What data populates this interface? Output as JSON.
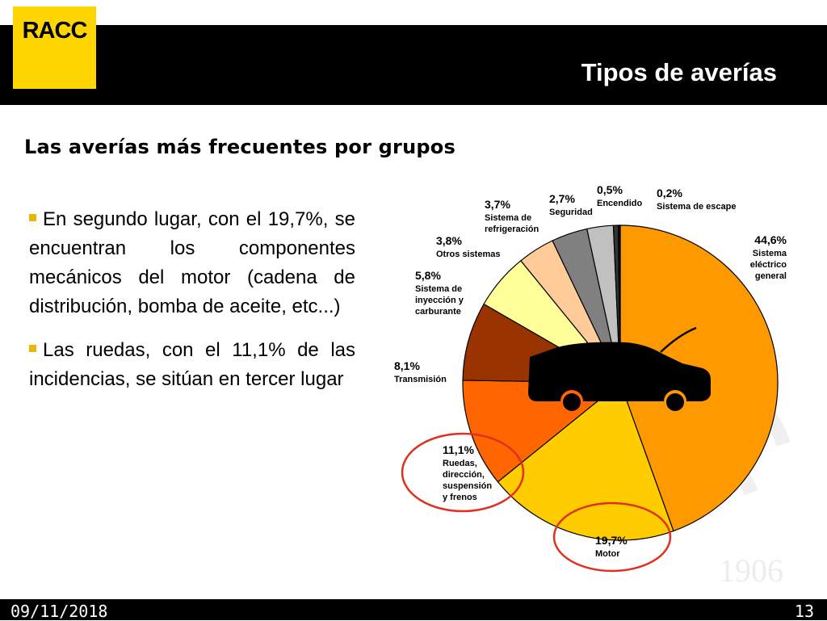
{
  "brand": {
    "logo_text": "RACC",
    "logo_color": "#ffd500",
    "watermark_year": "1906"
  },
  "header": {
    "title": "Tipos de averías"
  },
  "subtitle": "Las averías más frecuentes por grupos",
  "bullets": [
    "En segundo lugar, con el 19,7%, se encuentran los componentes mecánicos del motor (cadena de distribución, bomba de aceite, etc...)",
    "Las ruedas, con el 11,1% de las incidencias, se sitúan en tercer lugar"
  ],
  "footer": {
    "date": "09/11/2018",
    "page": "13"
  },
  "chart_data": {
    "type": "pie",
    "title": "",
    "slices": [
      {
        "label_lines": [
          "Sistema",
          "eléctrico",
          "general"
        ],
        "pct_text": "44,6%",
        "value": 44.6,
        "color": "#ff9900"
      },
      {
        "label_lines": [
          "Motor"
        ],
        "pct_text": "19,7%",
        "value": 19.7,
        "color": "#ffcc00"
      },
      {
        "label_lines": [
          "Ruedas,",
          "dirección,",
          "suspensión",
          "y frenos"
        ],
        "pct_text": "11,1%",
        "value": 11.1,
        "color": "#ff6600",
        "highlighted": true
      },
      {
        "label_lines": [
          "Transmisión"
        ],
        "pct_text": "8,1%",
        "value": 8.1,
        "color": "#993300"
      },
      {
        "label_lines": [
          "Sistema de",
          "inyección y",
          "carburante"
        ],
        "pct_text": "5,8%",
        "value": 5.8,
        "color": "#ffff99"
      },
      {
        "label_lines": [
          "Otros sistemas"
        ],
        "pct_text": "3,8%",
        "value": 3.8,
        "color": "#ffcc99"
      },
      {
        "label_lines": [
          "Sistema de",
          "refrigeración"
        ],
        "pct_text": "3,7%",
        "value": 3.7,
        "color": "#808080"
      },
      {
        "label_lines": [
          "Seguridad"
        ],
        "pct_text": "2,7%",
        "value": 2.7,
        "color": "#c0c0c0"
      },
      {
        "label_lines": [
          "Encendido"
        ],
        "pct_text": "0,5%",
        "value": 0.5,
        "color": "#333333"
      },
      {
        "label_lines": [
          "Sistema de escape"
        ],
        "pct_text": "0,2%",
        "value": 0.2,
        "color": "#000000"
      }
    ],
    "highlight_color": "#e03020"
  }
}
